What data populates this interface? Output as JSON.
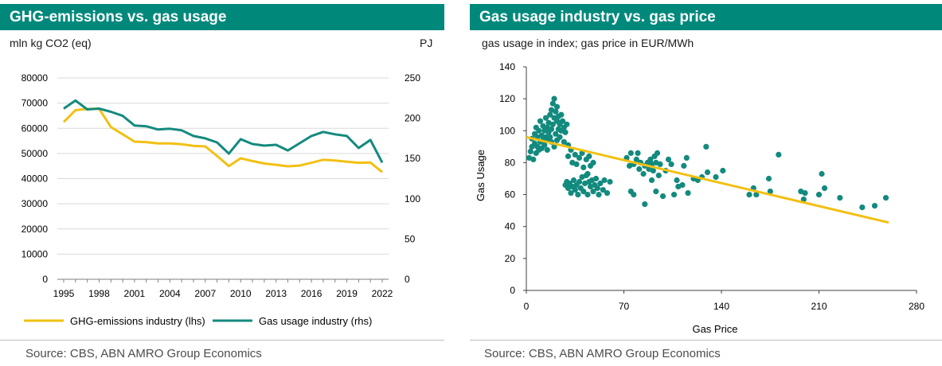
{
  "left": {
    "title": "GHG-emissions vs. gas usage",
    "unit_left": "mln kg CO2 (eq)",
    "unit_right": "PJ",
    "source": "Source: CBS, ABN AMRO Group Economics"
  },
  "right": {
    "title": "Gas usage industry vs. gas price",
    "subtitle": "gas usage in index; gas price in EUR/MWh",
    "source": "Source: CBS, ABN AMRO Group Economics"
  },
  "colors": {
    "header": "#00897b",
    "ghg": "#f2c013",
    "gas": "#138a7e",
    "trend": "#f2c013"
  },
  "chart_data": [
    {
      "type": "line",
      "title": "GHG-emissions vs. gas usage",
      "x": [
        1995,
        1996,
        1997,
        1998,
        1999,
        2000,
        2001,
        2002,
        2003,
        2004,
        2005,
        2006,
        2007,
        2008,
        2009,
        2010,
        2011,
        2012,
        2013,
        2014,
        2015,
        2016,
        2017,
        2018,
        2019,
        2020,
        2021,
        2022
      ],
      "xticks": [
        1995,
        1998,
        2001,
        2004,
        2007,
        2010,
        2013,
        2016,
        2019,
        2022
      ],
      "ylim_left": [
        0,
        80000
      ],
      "yticks_left": [
        0,
        10000,
        20000,
        30000,
        40000,
        50000,
        60000,
        70000,
        80000
      ],
      "ylim_right": [
        0,
        250
      ],
      "yticks_right": [
        0,
        50,
        100,
        150,
        200,
        250
      ],
      "grid": true,
      "legend_position": "bottom",
      "series": [
        {
          "name": "GHG-emissions industry (lhs)",
          "axis": "left",
          "values": [
            62500,
            67200,
            67700,
            67800,
            60500,
            57600,
            54700,
            54500,
            54000,
            54000,
            53700,
            53000,
            52800,
            49000,
            45000,
            48100,
            47000,
            46000,
            45500,
            44900,
            45200,
            46300,
            47500,
            47200,
            46700,
            46300,
            46400,
            42600
          ]
        },
        {
          "name": "Gas usage industry (rhs)",
          "axis": "right",
          "values": [
            212,
            222,
            211,
            212,
            208,
            203,
            191,
            190,
            186,
            187,
            185,
            178,
            175,
            170,
            156,
            174,
            168,
            166,
            167,
            160,
            169,
            178,
            183,
            180,
            178,
            163,
            173,
            145
          ]
        }
      ]
    },
    {
      "type": "scatter",
      "title": "Gas usage industry vs. gas price",
      "xlabel": "Gas Price",
      "ylabel": "Gas Usage",
      "xlim": [
        0,
        280
      ],
      "xticks": [
        0,
        70,
        140,
        210,
        280
      ],
      "ylim": [
        0,
        140
      ],
      "yticks": [
        0,
        20,
        40,
        60,
        80,
        100,
        120,
        140
      ],
      "trendline": {
        "x": [
          0,
          260
        ],
        "y": [
          96,
          42.5
        ]
      },
      "points": [
        [
          2,
          83
        ],
        [
          3,
          87
        ],
        [
          4,
          90
        ],
        [
          4,
          95
        ],
        [
          5,
          82
        ],
        [
          6,
          92
        ],
        [
          6,
          98
        ],
        [
          7,
          86
        ],
        [
          7,
          102
        ],
        [
          8,
          90
        ],
        [
          8,
          96
        ],
        [
          9,
          88
        ],
        [
          9,
          100
        ],
        [
          10,
          93
        ],
        [
          10,
          106
        ],
        [
          11,
          89
        ],
        [
          11,
          97
        ],
        [
          12,
          94
        ],
        [
          12,
          103
        ],
        [
          13,
          91
        ],
        [
          13,
          100
        ],
        [
          14,
          96
        ],
        [
          14,
          108
        ],
        [
          15,
          102
        ],
        [
          15,
          94
        ],
        [
          16,
          105
        ],
        [
          16,
          99
        ],
        [
          17,
          110
        ],
        [
          17,
          96
        ],
        [
          18,
          113
        ],
        [
          18,
          101
        ],
        [
          19,
          117
        ],
        [
          19,
          104
        ],
        [
          20,
          120
        ],
        [
          20,
          108
        ],
        [
          21,
          98
        ],
        [
          21,
          112
        ],
        [
          22,
          106
        ],
        [
          22,
          115
        ],
        [
          23,
          101
        ],
        [
          23,
          109
        ],
        [
          24,
          96
        ],
        [
          24,
          104
        ],
        [
          25,
          110
        ],
        [
          25,
          100
        ],
        [
          26,
          106
        ],
        [
          27,
          102
        ],
        [
          27,
          93
        ],
        [
          28,
          99
        ],
        [
          29,
          104
        ],
        [
          15,
          88
        ],
        [
          18,
          93
        ],
        [
          20,
          90
        ],
        [
          22,
          94
        ],
        [
          30,
          91
        ],
        [
          30,
          84
        ],
        [
          32,
          88
        ],
        [
          33,
          80
        ],
        [
          35,
          85
        ],
        [
          36,
          79
        ],
        [
          38,
          83
        ],
        [
          40,
          86
        ],
        [
          41,
          77
        ],
        [
          43,
          82
        ],
        [
          44,
          73
        ],
        [
          45,
          84
        ],
        [
          46,
          78
        ],
        [
          48,
          80
        ],
        [
          28,
          66
        ],
        [
          29,
          68
        ],
        [
          30,
          64
        ],
        [
          31,
          67
        ],
        [
          32,
          61
        ],
        [
          33,
          65
        ],
        [
          34,
          69
        ],
        [
          35,
          63
        ],
        [
          36,
          66
        ],
        [
          37,
          60
        ],
        [
          38,
          68
        ],
        [
          39,
          64
        ],
        [
          40,
          71
        ],
        [
          41,
          62
        ],
        [
          42,
          67
        ],
        [
          43,
          72
        ],
        [
          44,
          60
        ],
        [
          45,
          68
        ],
        [
          46,
          65
        ],
        [
          47,
          69
        ],
        [
          48,
          62
        ],
        [
          49,
          66
        ],
        [
          50,
          70
        ],
        [
          51,
          64
        ],
        [
          52,
          60
        ],
        [
          53,
          67
        ],
        [
          55,
          63
        ],
        [
          56,
          69
        ],
        [
          58,
          61
        ],
        [
          60,
          68
        ],
        [
          72,
          83
        ],
        [
          74,
          78
        ],
        [
          75,
          86
        ],
        [
          77,
          79
        ],
        [
          79,
          82
        ],
        [
          80,
          86
        ],
        [
          81,
          76
        ],
        [
          82,
          80
        ],
        [
          84,
          73
        ],
        [
          85,
          78
        ],
        [
          87,
          80
        ],
        [
          88,
          76
        ],
        [
          89,
          82
        ],
        [
          90,
          79
        ],
        [
          91,
          75
        ],
        [
          92,
          84
        ],
        [
          93,
          80
        ],
        [
          94,
          86
        ],
        [
          95,
          72
        ],
        [
          96,
          79
        ],
        [
          75,
          62
        ],
        [
          77,
          60
        ],
        [
          85,
          54
        ],
        [
          90,
          69
        ],
        [
          93,
          62
        ],
        [
          98,
          59
        ],
        [
          100,
          75
        ],
        [
          102,
          82
        ],
        [
          104,
          79
        ],
        [
          106,
          60
        ],
        [
          108,
          69
        ],
        [
          109,
          65
        ],
        [
          112,
          66
        ],
        [
          113,
          78
        ],
        [
          115,
          83
        ],
        [
          116,
          61
        ],
        [
          120,
          70
        ],
        [
          123,
          69
        ],
        [
          126,
          71
        ],
        [
          129,
          90
        ],
        [
          130,
          74
        ],
        [
          136,
          71
        ],
        [
          141,
          75
        ],
        [
          160,
          60
        ],
        [
          163,
          64
        ],
        [
          165,
          60
        ],
        [
          174,
          70
        ],
        [
          175,
          62
        ],
        [
          181,
          85
        ],
        [
          197,
          62
        ],
        [
          199,
          57
        ],
        [
          200,
          61
        ],
        [
          210,
          60
        ],
        [
          212,
          73
        ],
        [
          214,
          64
        ],
        [
          225,
          58
        ],
        [
          241,
          52
        ],
        [
          250,
          53
        ],
        [
          258,
          58
        ]
      ]
    }
  ]
}
